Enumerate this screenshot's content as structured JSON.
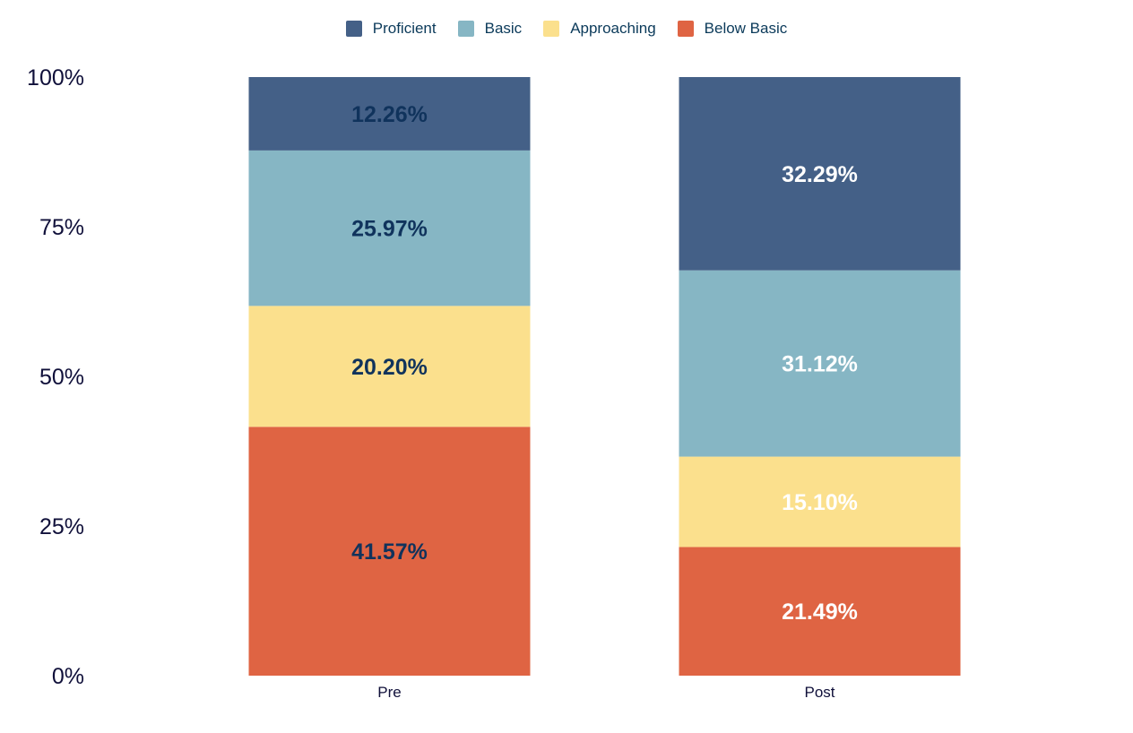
{
  "chart_data": {
    "type": "bar",
    "stacked": true,
    "categories": [
      "Pre",
      "Post"
    ],
    "series": [
      {
        "name": "Below Basic",
        "color": "#df6443",
        "values": [
          41.57,
          21.49
        ],
        "labels": [
          "41.57%",
          "21.49%"
        ]
      },
      {
        "name": "Approaching",
        "color": "#fbe08d",
        "values": [
          20.2,
          15.1
        ],
        "labels": [
          "20.20%",
          "15.10%"
        ]
      },
      {
        "name": "Basic",
        "color": "#86b6c4",
        "values": [
          25.97,
          31.12
        ],
        "labels": [
          "25.97%",
          "31.12%"
        ]
      },
      {
        "name": "Proficient",
        "color": "#446087",
        "values": [
          12.26,
          32.29
        ],
        "labels": [
          "12.26%",
          "32.29%"
        ]
      }
    ],
    "legend_order": [
      "Proficient",
      "Basic",
      "Approaching",
      "Below Basic"
    ],
    "label_colors": {
      "Pre": "#10335c",
      "Post": "#ffffff"
    },
    "ylim": [
      0,
      100
    ],
    "yticks": [
      0,
      25,
      50,
      75,
      100
    ],
    "ytick_labels": [
      "0%",
      "25%",
      "50%",
      "75%",
      "100%"
    ],
    "legend_position": "top-center",
    "grid": false
  }
}
